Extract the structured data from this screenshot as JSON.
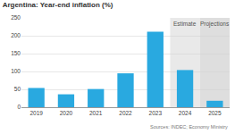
{
  "chart_data": {
    "type": "bar",
    "title": "Argentina: Year-end inflation (%)",
    "categories": [
      "2019",
      "2020",
      "2021",
      "2022",
      "2023",
      "2024",
      "2025"
    ],
    "values": [
      53.8,
      36.1,
      50.9,
      94.8,
      211.4,
      104,
      18
    ],
    "color": "#29a9e0",
    "ylim": [
      0,
      250
    ],
    "yticks": [
      0,
      50,
      100,
      150,
      200,
      250
    ],
    "grid": true,
    "annotations": [
      {
        "text": "Estimate",
        "category": "2024"
      },
      {
        "text": "Projections",
        "category": "2025"
      }
    ],
    "source": "Sources: INDEC; Economy Ministry"
  }
}
